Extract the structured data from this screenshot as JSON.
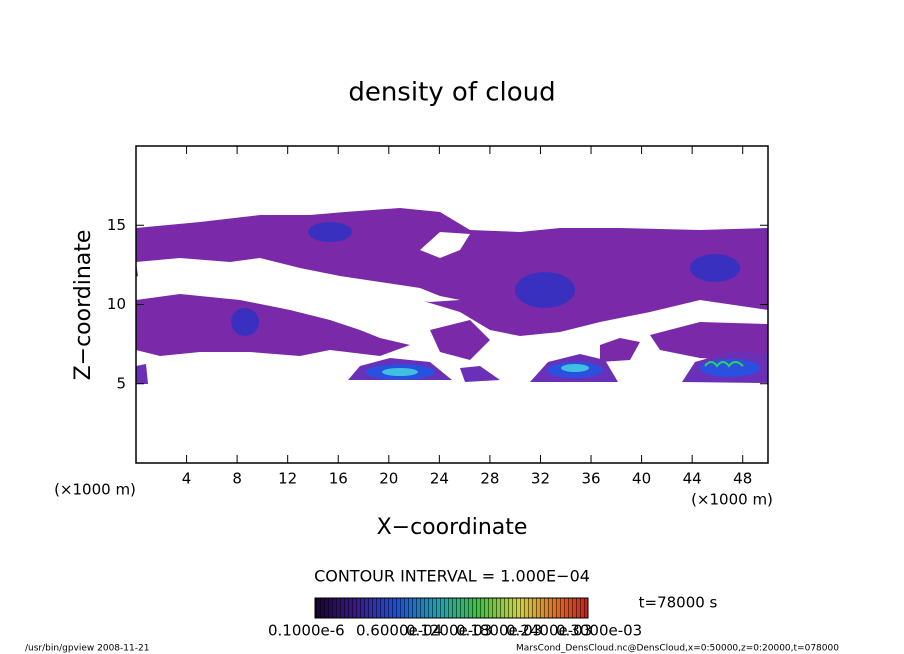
{
  "chart_data": {
    "type": "contour",
    "title": "density of cloud",
    "x_label": "X−coordinate",
    "y_label": "Z−coordinate",
    "x_unit": "(×1000 m)",
    "y_unit": "(×1000 m)",
    "xlim": [
      0,
      50
    ],
    "ylim": [
      0,
      20
    ],
    "xticks": [
      4,
      8,
      12,
      16,
      20,
      24,
      28,
      32,
      36,
      40,
      44,
      48
    ],
    "yticks": [
      5,
      10,
      15
    ],
    "contour_interval": "CONTOUR INTERVAL = 1.000E−04",
    "time": "t=78000 s",
    "colorbar_labels": [
      "0.1000e-6",
      "0.6000e-04",
      "0.1200e-03",
      "0.1800e-03",
      "0.2400e-03",
      "0.3000e-03"
    ],
    "footer_left": "/usr/bin/gpview   2008-11-21",
    "footer_right": "MarsCond_DensCloud.nc@DensCloud,x=0:50000,z=0:20000,t=078000"
  }
}
